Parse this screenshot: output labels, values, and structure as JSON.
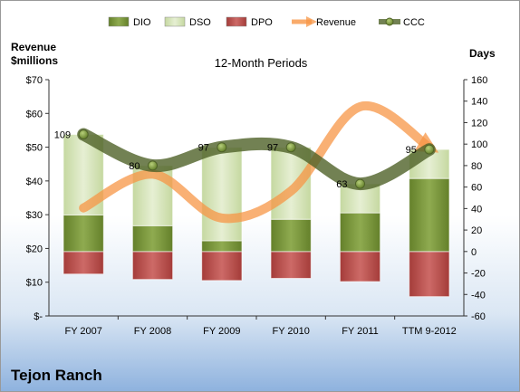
{
  "company": "Tejon Ranch",
  "chart_data": {
    "type": "bar",
    "title": "12-Month Periods",
    "categories": [
      "FY 2007",
      "FY 2008",
      "FY 2009",
      "FY 2010",
      "FY 2011",
      "TTM 9-2012"
    ],
    "left_axis": {
      "label_line1": "Revenue",
      "label_line2": "$millions",
      "ylim": [
        0,
        70
      ],
      "ticks": [
        0,
        10,
        20,
        30,
        40,
        50,
        60,
        70
      ],
      "tick_labels": [
        "$-",
        "$10",
        "$20",
        "$30",
        "$40",
        "$50",
        "$60",
        "$70"
      ]
    },
    "right_axis": {
      "label": "Days",
      "ylim": [
        -60,
        160
      ],
      "ticks": [
        -60,
        -40,
        -20,
        0,
        20,
        40,
        60,
        80,
        100,
        120,
        140,
        160
      ],
      "tick_labels": [
        "-60",
        "-40",
        "-20",
        "0",
        "20",
        "40",
        "60",
        "80",
        "100",
        "120",
        "140",
        "160"
      ]
    },
    "series": [
      {
        "name": "DIO",
        "type": "stacked-bar",
        "axis": "right",
        "color": "#77933C",
        "values": [
          34,
          24,
          10,
          30,
          36,
          68
        ]
      },
      {
        "name": "DSO",
        "type": "stacked-bar",
        "axis": "right",
        "color": "#D7E4BD",
        "values": [
          75,
          56,
          87,
          67,
          27,
          27
        ]
      },
      {
        "name": "DPO",
        "type": "stacked-bar",
        "axis": "right",
        "color": "#C0504D",
        "values": [
          -21,
          -26,
          -27,
          -25,
          -28,
          -42
        ]
      },
      {
        "name": "Revenue",
        "type": "line",
        "axis": "left",
        "color": "#F79646",
        "values": [
          32,
          42,
          29,
          37,
          62,
          50
        ]
      },
      {
        "name": "CCC",
        "type": "line",
        "axis": "right",
        "color": "#4F6228",
        "values": [
          109,
          80,
          97,
          97,
          63,
          95
        ],
        "labels": [
          "109",
          "80",
          "97",
          "97",
          "63",
          "95"
        ]
      }
    ],
    "legend": [
      "DIO",
      "DSO",
      "DPO",
      "Revenue",
      "CCC"
    ],
    "legend_position": "top",
    "grid": false
  }
}
